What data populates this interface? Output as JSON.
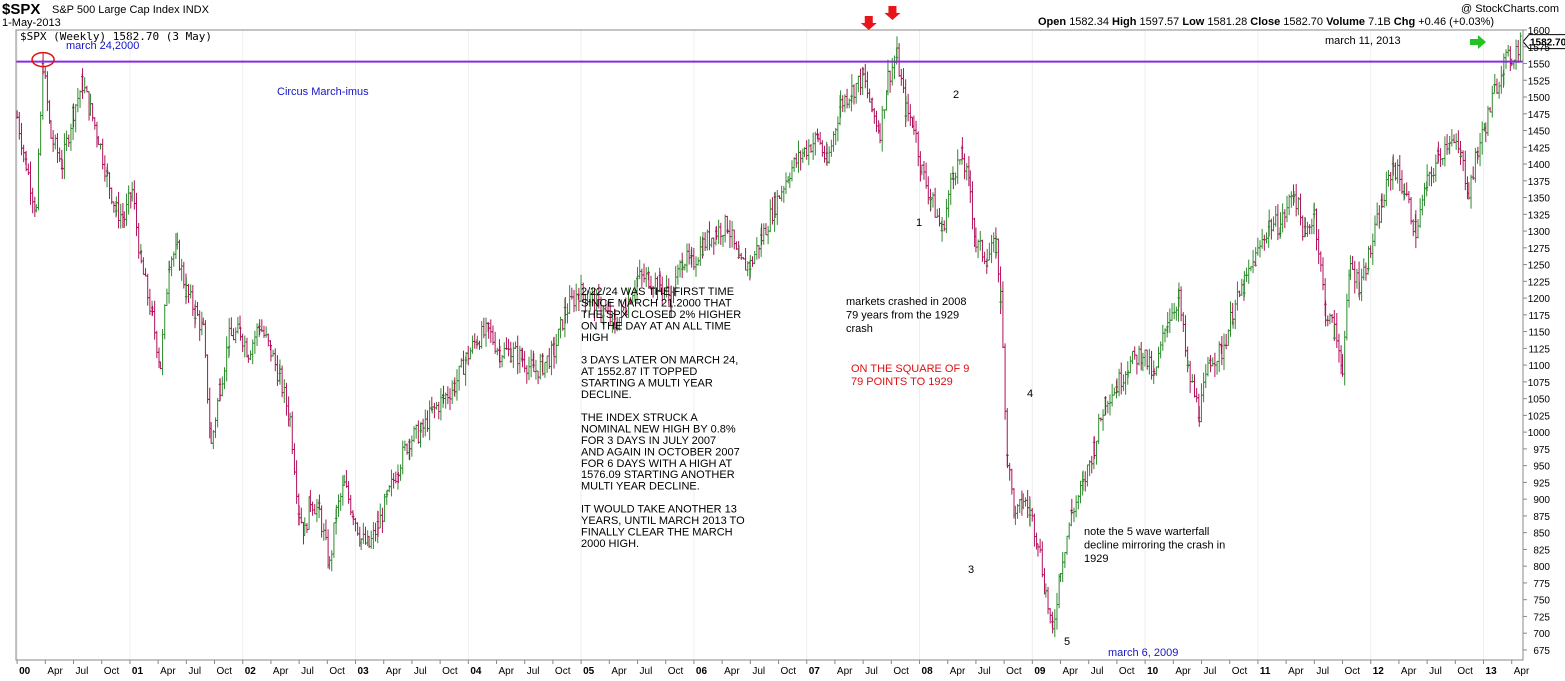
{
  "header": {
    "ticker": "$SPX",
    "name": "S&P 500 Large Cap Index INDX",
    "date": "1-May-2013",
    "open_label": "Open",
    "open": "1582.34",
    "high_label": "High",
    "high": "1597.57",
    "low_label": "Low",
    "low": "1581.28",
    "close_label": "Close",
    "close": "1582.70",
    "volume_label": "Volume",
    "volume": "7.1B",
    "chg_label": "Chg",
    "chg": "+0.46 (+0.03%)",
    "brand": "@ StockCharts.com",
    "legend": "$SPX (Weekly) 1582.70 (3 May)",
    "last_price_tag": "1582.70"
  },
  "chart_data": {
    "type": "line",
    "ylim": [
      660,
      1600
    ],
    "y_ticks": [
      675,
      700,
      725,
      750,
      775,
      800,
      825,
      850,
      875,
      900,
      925,
      950,
      975,
      1000,
      1025,
      1050,
      1075,
      1100,
      1125,
      1150,
      1175,
      1200,
      1225,
      1250,
      1275,
      1300,
      1325,
      1350,
      1375,
      1400,
      1425,
      1450,
      1475,
      1500,
      1525,
      1550,
      1575,
      1600
    ],
    "x_range": [
      1999.99,
      2013.35
    ],
    "x_ticks": [
      {
        "label": "00",
        "x": 2000.0,
        "major": true
      },
      {
        "label": "Apr",
        "x": 2000.25
      },
      {
        "label": "Jul",
        "x": 2000.5
      },
      {
        "label": "Oct",
        "x": 2000.75
      },
      {
        "label": "01",
        "x": 2001.0,
        "major": true
      },
      {
        "label": "Apr",
        "x": 2001.25
      },
      {
        "label": "Jul",
        "x": 2001.5
      },
      {
        "label": "Oct",
        "x": 2001.75
      },
      {
        "label": "02",
        "x": 2002.0,
        "major": true
      },
      {
        "label": "Apr",
        "x": 2002.25
      },
      {
        "label": "Jul",
        "x": 2002.5
      },
      {
        "label": "Oct",
        "x": 2002.75
      },
      {
        "label": "03",
        "x": 2003.0,
        "major": true
      },
      {
        "label": "Apr",
        "x": 2003.25
      },
      {
        "label": "Jul",
        "x": 2003.5
      },
      {
        "label": "Oct",
        "x": 2003.75
      },
      {
        "label": "04",
        "x": 2004.0,
        "major": true
      },
      {
        "label": "Apr",
        "x": 2004.25
      },
      {
        "label": "Jul",
        "x": 2004.5
      },
      {
        "label": "Oct",
        "x": 2004.75
      },
      {
        "label": "05",
        "x": 2005.0,
        "major": true
      },
      {
        "label": "Apr",
        "x": 2005.25
      },
      {
        "label": "Jul",
        "x": 2005.5
      },
      {
        "label": "Oct",
        "x": 2005.75
      },
      {
        "label": "06",
        "x": 2006.0,
        "major": true
      },
      {
        "label": "Apr",
        "x": 2006.25
      },
      {
        "label": "Jul",
        "x": 2006.5
      },
      {
        "label": "Oct",
        "x": 2006.75
      },
      {
        "label": "07",
        "x": 2007.0,
        "major": true
      },
      {
        "label": "Apr",
        "x": 2007.25
      },
      {
        "label": "Jul",
        "x": 2007.5
      },
      {
        "label": "Oct",
        "x": 2007.75
      },
      {
        "label": "08",
        "x": 2008.0,
        "major": true
      },
      {
        "label": "Apr",
        "x": 2008.25
      },
      {
        "label": "Jul",
        "x": 2008.5
      },
      {
        "label": "Oct",
        "x": 2008.75
      },
      {
        "label": "09",
        "x": 2009.0,
        "major": true
      },
      {
        "label": "Apr",
        "x": 2009.25
      },
      {
        "label": "Jul",
        "x": 2009.5
      },
      {
        "label": "Oct",
        "x": 2009.75
      },
      {
        "label": "10",
        "x": 2010.0,
        "major": true
      },
      {
        "label": "Apr",
        "x": 2010.25
      },
      {
        "label": "Jul",
        "x": 2010.5
      },
      {
        "label": "Oct",
        "x": 2010.75
      },
      {
        "label": "11",
        "x": 2011.0,
        "major": true
      },
      {
        "label": "Apr",
        "x": 2011.25
      },
      {
        "label": "Jul",
        "x": 2011.5
      },
      {
        "label": "Oct",
        "x": 2011.75
      },
      {
        "label": "12",
        "x": 2012.0,
        "major": true
      },
      {
        "label": "Apr",
        "x": 2012.25
      },
      {
        "label": "Jul",
        "x": 2012.5
      },
      {
        "label": "Oct",
        "x": 2012.75
      },
      {
        "label": "13",
        "x": 2013.0,
        "major": true
      },
      {
        "label": "Apr",
        "x": 2013.25
      }
    ],
    "series": [
      {
        "points": [
          [
            2000.0,
            1470
          ],
          [
            2000.08,
            1400
          ],
          [
            2000.17,
            1330
          ],
          [
            2000.23,
            1550
          ],
          [
            2000.3,
            1440
          ],
          [
            2000.4,
            1400
          ],
          [
            2000.5,
            1480
          ],
          [
            2000.58,
            1520
          ],
          [
            2000.65,
            1480
          ],
          [
            2000.72,
            1440
          ],
          [
            2000.8,
            1380
          ],
          [
            2000.88,
            1330
          ],
          [
            2000.95,
            1320
          ],
          [
            2001.02,
            1360
          ],
          [
            2001.1,
            1250
          ],
          [
            2001.2,
            1170
          ],
          [
            2001.27,
            1100
          ],
          [
            2001.35,
            1260
          ],
          [
            2001.42,
            1270
          ],
          [
            2001.5,
            1210
          ],
          [
            2001.58,
            1180
          ],
          [
            2001.65,
            1150
          ],
          [
            2001.72,
            980
          ],
          [
            2001.8,
            1070
          ],
          [
            2001.88,
            1140
          ],
          [
            2001.98,
            1150
          ],
          [
            2002.05,
            1120
          ],
          [
            2002.15,
            1160
          ],
          [
            2002.25,
            1120
          ],
          [
            2002.33,
            1080
          ],
          [
            2002.42,
            1020
          ],
          [
            2002.5,
            880
          ],
          [
            2002.55,
            850
          ],
          [
            2002.6,
            900
          ],
          [
            2002.68,
            880
          ],
          [
            2002.77,
            800
          ],
          [
            2002.83,
            880
          ],
          [
            2002.9,
            920
          ],
          [
            2002.98,
            880
          ],
          [
            2003.05,
            840
          ],
          [
            2003.12,
            830
          ],
          [
            2003.2,
            860
          ],
          [
            2003.28,
            900
          ],
          [
            2003.38,
            950
          ],
          [
            2003.48,
            990
          ],
          [
            2003.58,
            1000
          ],
          [
            2003.68,
            1030
          ],
          [
            2003.78,
            1050
          ],
          [
            2003.88,
            1070
          ],
          [
            2003.98,
            1110
          ],
          [
            2004.08,
            1140
          ],
          [
            2004.18,
            1150
          ],
          [
            2004.28,
            1120
          ],
          [
            2004.38,
            1120
          ],
          [
            2004.48,
            1110
          ],
          [
            2004.58,
            1090
          ],
          [
            2004.66,
            1100
          ],
          [
            2004.76,
            1120
          ],
          [
            2004.86,
            1180
          ],
          [
            2004.98,
            1210
          ],
          [
            2005.08,
            1200
          ],
          [
            2005.2,
            1180
          ],
          [
            2005.3,
            1160
          ],
          [
            2005.4,
            1190
          ],
          [
            2005.5,
            1230
          ],
          [
            2005.6,
            1230
          ],
          [
            2005.7,
            1220
          ],
          [
            2005.8,
            1200
          ],
          [
            2005.9,
            1260
          ],
          [
            2005.98,
            1250
          ],
          [
            2006.08,
            1280
          ],
          [
            2006.2,
            1300
          ],
          [
            2006.3,
            1310
          ],
          [
            2006.4,
            1250
          ],
          [
            2006.5,
            1250
          ],
          [
            2006.6,
            1290
          ],
          [
            2006.72,
            1340
          ],
          [
            2006.85,
            1390
          ],
          [
            2006.98,
            1420
          ],
          [
            2007.1,
            1440
          ],
          [
            2007.18,
            1400
          ],
          [
            2007.3,
            1490
          ],
          [
            2007.4,
            1510
          ],
          [
            2007.5,
            1530
          ],
          [
            2007.58,
            1480
          ],
          [
            2007.65,
            1450
          ],
          [
            2007.72,
            1530
          ],
          [
            2007.8,
            1560
          ],
          [
            2007.88,
            1480
          ],
          [
            2007.95,
            1460
          ],
          [
            2008.02,
            1390
          ],
          [
            2008.1,
            1350
          ],
          [
            2008.2,
            1300
          ],
          [
            2008.3,
            1390
          ],
          [
            2008.38,
            1410
          ],
          [
            2008.45,
            1360
          ],
          [
            2008.5,
            1280
          ],
          [
            2008.6,
            1260
          ],
          [
            2008.68,
            1280
          ],
          [
            2008.72,
            1200
          ],
          [
            2008.78,
            960
          ],
          [
            2008.85,
            870
          ],
          [
            2008.92,
            900
          ],
          [
            2008.98,
            880
          ],
          [
            2009.05,
            840
          ],
          [
            2009.12,
            760
          ],
          [
            2009.18,
            700
          ],
          [
            2009.25,
            800
          ],
          [
            2009.35,
            880
          ],
          [
            2009.45,
            920
          ],
          [
            2009.55,
            980
          ],
          [
            2009.65,
            1050
          ],
          [
            2009.75,
            1070
          ],
          [
            2009.85,
            1100
          ],
          [
            2009.98,
            1120
          ],
          [
            2010.08,
            1080
          ],
          [
            2010.2,
            1170
          ],
          [
            2010.3,
            1200
          ],
          [
            2010.38,
            1090
          ],
          [
            2010.48,
            1030
          ],
          [
            2010.58,
            1110
          ],
          [
            2010.68,
            1120
          ],
          [
            2010.78,
            1180
          ],
          [
            2010.88,
            1220
          ],
          [
            2010.98,
            1260
          ],
          [
            2011.1,
            1310
          ],
          [
            2011.2,
            1310
          ],
          [
            2011.32,
            1360
          ],
          [
            2011.42,
            1290
          ],
          [
            2011.5,
            1330
          ],
          [
            2011.6,
            1180
          ],
          [
            2011.68,
            1150
          ],
          [
            2011.75,
            1100
          ],
          [
            2011.82,
            1250
          ],
          [
            2011.9,
            1220
          ],
          [
            2011.98,
            1260
          ],
          [
            2012.1,
            1340
          ],
          [
            2012.2,
            1400
          ],
          [
            2012.3,
            1360
          ],
          [
            2012.4,
            1300
          ],
          [
            2012.5,
            1370
          ],
          [
            2012.6,
            1410
          ],
          [
            2012.7,
            1440
          ],
          [
            2012.8,
            1410
          ],
          [
            2012.87,
            1360
          ],
          [
            2012.95,
            1420
          ],
          [
            2013.02,
            1460
          ],
          [
            2013.1,
            1510
          ],
          [
            2013.18,
            1550
          ],
          [
            2013.25,
            1560
          ],
          [
            2013.33,
            1582.7
          ]
        ]
      }
    ],
    "reference_line_level": 1552.87,
    "annotations": {
      "march_2000": "march 24,2000",
      "circus": "Circus March-imus",
      "main_text": [
        "2/22/24 WAS THE FIRST TIME",
        "SINCE MARCH 21.2000 THAT",
        "THE SPX CLOSED 2% HIGHER",
        "ON THE DAY AT AN ALL TIME",
        "HIGH",
        "",
        "3 DAYS LATER ON MARCH 24,",
        "AT 1552.87 IT TOPPED",
        "STARTING A MULTI YEAR",
        "DECLINE.",
        "",
        "THE INDEX STRUCK  A",
        "NOMINAL NEW HIGH BY 0.8%",
        "FOR 3 DAYS IN JULY 2007",
        "AND AGAIN IN OCTOBER 2007",
        "FOR 6 DAYS WITH A HIGH AT",
        "1576.09 STARTING ANOTHER",
        "MULTI YEAR DECLINE.",
        "",
        "IT WOULD TAKE ANOTHER 13",
        "YEARS, UNTIL MARCH 2013 TO",
        "FINALLY CLEAR THE MARCH",
        "2000 HIGH."
      ],
      "crash_text": [
        "markets crashed in 2008",
        "79 years from the 1929",
        "crash"
      ],
      "square_text": [
        "ON THE SQUARE OF 9",
        "79 POINTS TO 1929"
      ],
      "wave_text": [
        "note the 5 wave warterfall",
        "decline mirroring the crash in",
        "1929"
      ],
      "march_2013": "march 11, 2013",
      "march_2009": "march 6, 2009",
      "wave_1": "1",
      "wave_2": "2",
      "wave_3": "3",
      "wave_4": "4",
      "wave_5": "5"
    },
    "colors": {
      "up": "#2e8b2e",
      "down": "#b0105a",
      "reference": "#8a2be2",
      "arrow_red": "#e8141c",
      "arrow_green": "#22c322",
      "circle": "#e01010",
      "blue_text": "#1414c8",
      "red_text": "#e01010"
    }
  }
}
